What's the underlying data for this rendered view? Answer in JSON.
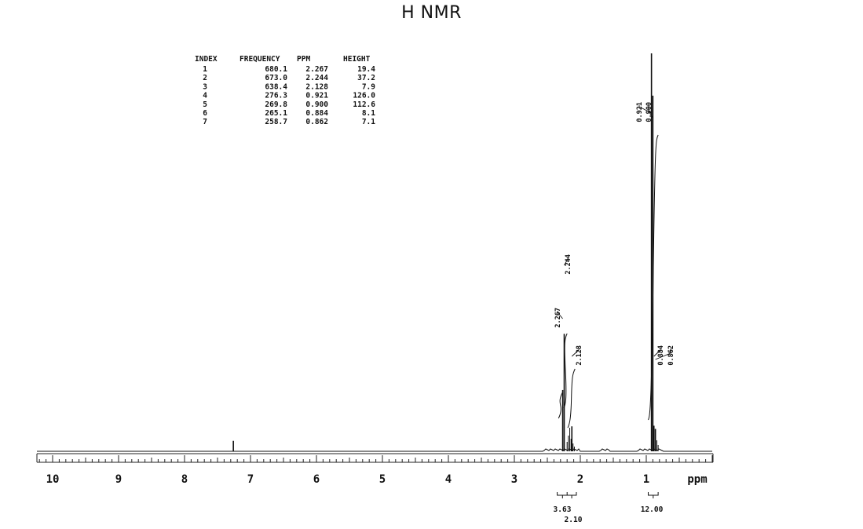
{
  "chart_data": {
    "type": "line",
    "title": "H NMR",
    "xlabel": "ppm",
    "xlim": [
      10.2,
      -0.1
    ],
    "x_ticks": [
      "10",
      "9",
      "8",
      "7",
      "6",
      "5",
      "4",
      "3",
      "2",
      "1"
    ],
    "peak_table": {
      "headers": [
        "INDEX",
        "FREQUENCY",
        "PPM",
        "HEIGHT"
      ],
      "rows": [
        [
          "1",
          "680.1",
          "2.267",
          "19.4"
        ],
        [
          "2",
          "673.0",
          "2.244",
          "37.2"
        ],
        [
          "3",
          "638.4",
          "2.128",
          "7.9"
        ],
        [
          "4",
          "276.3",
          "0.921",
          "126.0"
        ],
        [
          "5",
          "269.8",
          "0.900",
          "112.6"
        ],
        [
          "6",
          "265.1",
          "0.884",
          "8.1"
        ],
        [
          "7",
          "258.7",
          "0.862",
          "7.1"
        ]
      ]
    },
    "peak_labels": [
      "0.921",
      "0.900",
      "2.267",
      "2.244",
      "2.128",
      "0.884",
      "0.862"
    ],
    "peaks": [
      {
        "ppm": 7.26,
        "height": 3.3
      },
      {
        "ppm": 2.267,
        "height": 19.4
      },
      {
        "ppm": 2.244,
        "height": 37.2
      },
      {
        "ppm": 2.128,
        "height": 7.9
      },
      {
        "ppm": 0.921,
        "height": 126.0
      },
      {
        "ppm": 0.9,
        "height": 112.6
      },
      {
        "ppm": 0.884,
        "height": 8.1
      },
      {
        "ppm": 0.862,
        "height": 7.1
      }
    ],
    "integrals": [
      {
        "from": 2.35,
        "to": 2.06,
        "value": "3.63"
      },
      {
        "from": 2.2,
        "to": 2.06,
        "value": "2.10"
      },
      {
        "from": 0.97,
        "to": 0.82,
        "value": "12.00"
      }
    ]
  }
}
